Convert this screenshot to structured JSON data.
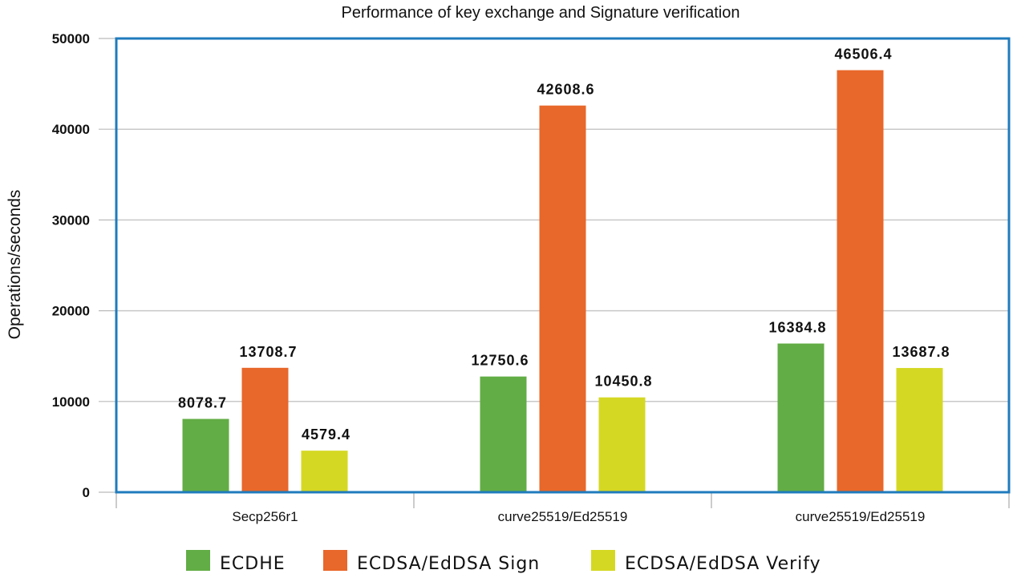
{
  "chart_data": {
    "type": "bar",
    "title": "Performance of key exchange and Signature verification",
    "ylabel": "Operations/seconds",
    "xlabel": "",
    "ylim": [
      0,
      50000
    ],
    "yticks": [
      0,
      10000,
      20000,
      30000,
      40000,
      50000
    ],
    "categories": [
      "Secp256r1",
      "curve25519/Ed25519",
      "curve25519/Ed25519"
    ],
    "series": [
      {
        "name": "ECDHE",
        "color": "#62ad45",
        "values": [
          8078.7,
          12750.6,
          16384.8
        ],
        "labels": [
          "8078.7",
          "12750.6",
          "16384.8"
        ]
      },
      {
        "name": "ECDSA/EdDSA Sign",
        "color": "#e8672a",
        "values": [
          13708.7,
          42608.6,
          46506.4
        ],
        "labels": [
          "13708.7",
          "42608.6",
          "46506.4"
        ]
      },
      {
        "name": "ECDSA/EdDSA Verify",
        "color": "#d5d823",
        "values": [
          4579.4,
          10450.8,
          13687.8
        ],
        "labels": [
          "4579.4",
          "10450.8",
          "13687.8"
        ]
      }
    ],
    "grid": true,
    "legend": "bottom",
    "frame_color": "#1f7bbd",
    "grid_color": "#c8c8c8"
  }
}
